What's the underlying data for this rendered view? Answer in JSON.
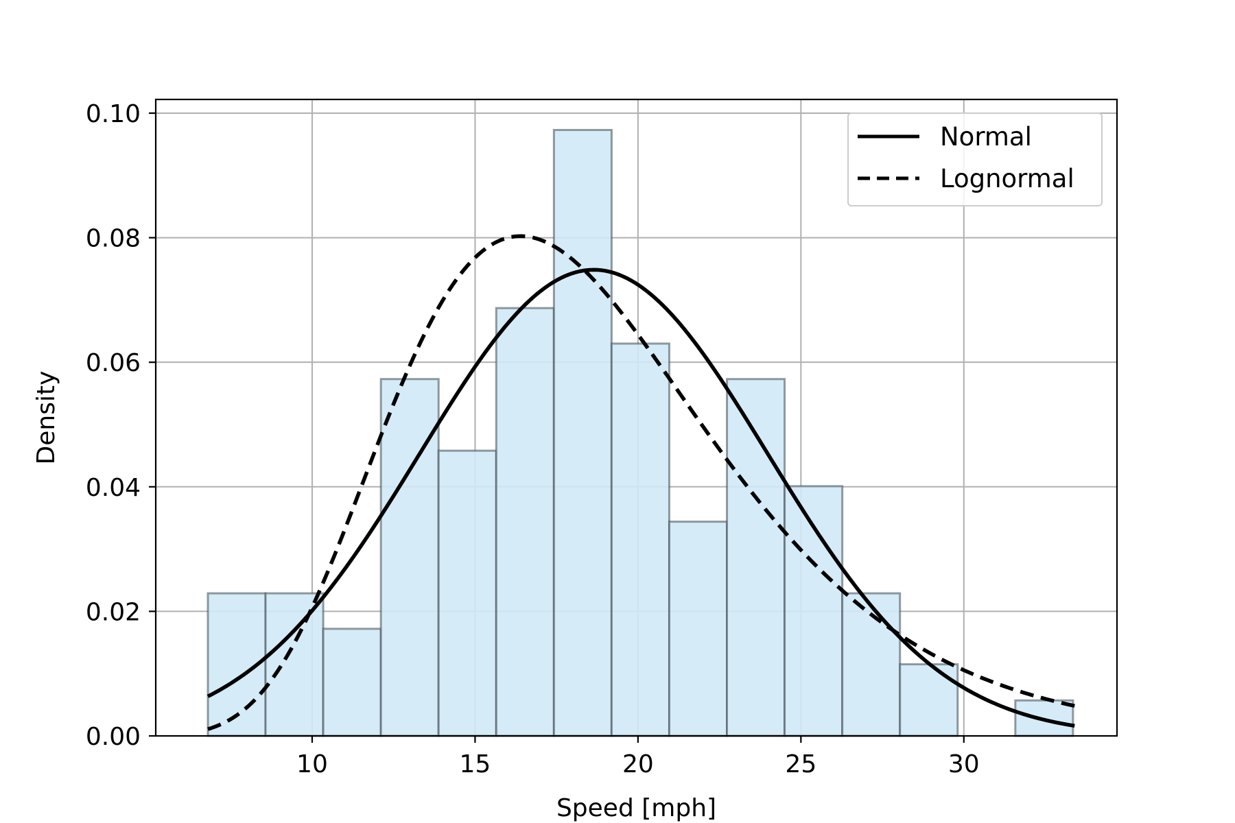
{
  "chart_data": {
    "type": "histogram",
    "title": "",
    "xlabel": "Speed [mph]",
    "ylabel": "Density",
    "xlim": [
      5.2,
      34.7
    ],
    "ylim": [
      0,
      0.1022
    ],
    "xticks": [
      10,
      15,
      20,
      25,
      30
    ],
    "yticks": [
      0.0,
      0.02,
      0.04,
      0.06,
      0.08,
      0.1
    ],
    "xtick_labels": [
      "10",
      "15",
      "20",
      "25",
      "30"
    ],
    "ytick_labels": [
      "0.00",
      "0.02",
      "0.04",
      "0.06",
      "0.08",
      "0.10"
    ],
    "grid": true,
    "bins": {
      "start": 6.8,
      "width": 1.77,
      "values": [
        0.0229,
        0.0229,
        0.0172,
        0.0573,
        0.0458,
        0.0687,
        0.0973,
        0.063,
        0.0344,
        0.0573,
        0.0401,
        0.0229,
        0.0115,
        0.0,
        0.0057
      ]
    },
    "bar_fill": "#d0e9f6",
    "bar_edge": "#404a54",
    "series": [
      {
        "name": "Normal",
        "style": "solid",
        "dist": "normal",
        "mean": 18.64,
        "sd": 5.33
      },
      {
        "name": "Lognormal",
        "style": "dashed",
        "dist": "lognormal",
        "mu": 2.887,
        "sigma": 0.3,
        "scale": 1.035
      }
    ],
    "legend": {
      "position": "top-right",
      "entries": [
        "Normal",
        "Lognormal"
      ]
    },
    "curve_range": [
      6.8,
      33.4
    ]
  }
}
